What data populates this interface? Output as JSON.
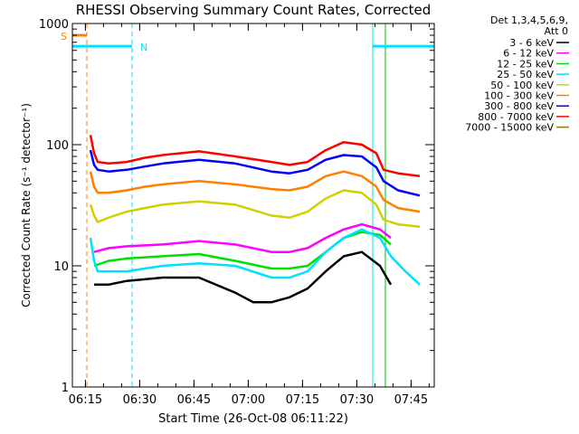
{
  "chart_data": {
    "type": "line",
    "title": "RHESSI Observing Summary Count Rates, Corrected",
    "xlabel": "Start Time (26-Oct-08 06:11:22)",
    "ylabel": "Corrected Count Rate (s⁻¹ detector⁻¹)",
    "x_unit": "minutes after 06:11:22",
    "y_scale": "log",
    "ylim": [
      1,
      1000
    ],
    "xlim": [
      0,
      100
    ],
    "x_ticks": [
      {
        "t": 3.6,
        "label": "06:15"
      },
      {
        "t": 18.6,
        "label": "06:30"
      },
      {
        "t": 33.6,
        "label": "06:45"
      },
      {
        "t": 48.6,
        "label": "07:00"
      },
      {
        "t": 63.6,
        "label": "07:15"
      },
      {
        "t": 78.6,
        "label": "07:30"
      },
      {
        "t": 93.6,
        "label": "07:45"
      }
    ],
    "y_ticks": [
      {
        "v": 1,
        "label": "1"
      },
      {
        "v": 10,
        "label": "10"
      },
      {
        "v": 100,
        "label": "100"
      },
      {
        "v": 1000,
        "label": "1000"
      }
    ],
    "legend_header": [
      "Det 1,3,4,5,6,9,",
      "Att 0"
    ],
    "legend_position": "top-right",
    "markers": [
      {
        "label": "S",
        "t_start": 0,
        "t_end": 4,
        "value": 800,
        "color": "#ff8000",
        "dashed_line_t": 4
      },
      {
        "label": "N",
        "t_start": 0,
        "t_end": 16.5,
        "value": 650,
        "color": "#00e0ff",
        "dashed_line_t": 16.5
      },
      {
        "label": "",
        "t_start": 83,
        "t_end": 100,
        "value": 650,
        "color": "#00e0ff",
        "dashed_line_t": 100
      }
    ],
    "vertical_lines": [
      {
        "t": 0,
        "color": "#00c000",
        "style": "solid"
      },
      {
        "t": 83,
        "color": "#00e0ff",
        "style": "solid"
      },
      {
        "t": 86.5,
        "color": "#00c000",
        "style": "solid"
      }
    ],
    "series": [
      {
        "name": "3 - 6 keV",
        "color": "#000000",
        "x": [
          6,
          10,
          15,
          25,
          35,
          45,
          50,
          55,
          60,
          65,
          70,
          75,
          80,
          85,
          88
        ],
        "y": [
          7,
          7,
          7.5,
          8,
          8,
          6,
          5,
          5,
          5.5,
          6.5,
          9,
          12,
          13,
          10,
          7
        ]
      },
      {
        "name": "6 - 12 keV",
        "color": "#ff00ff",
        "x": [
          6,
          10,
          15,
          25,
          35,
          45,
          55,
          60,
          65,
          70,
          75,
          80,
          85,
          88
        ],
        "y": [
          13,
          14,
          14.5,
          15,
          16,
          15,
          13,
          13,
          14,
          17,
          20,
          22,
          20,
          17
        ]
      },
      {
        "name": "12 - 25 keV",
        "color": "#00e000",
        "x": [
          6,
          10,
          15,
          25,
          35,
          45,
          55,
          60,
          65,
          70,
          75,
          80,
          85,
          88
        ],
        "y": [
          10,
          11,
          11.5,
          12,
          12.5,
          11,
          9.5,
          9.5,
          10,
          13,
          17,
          19,
          18,
          15
        ]
      },
      {
        "name": "25 - 50 keV",
        "color": "#00e0ff",
        "x": [
          5,
          6,
          7,
          10,
          15,
          20,
          25,
          35,
          45,
          55,
          60,
          65,
          70,
          75,
          80,
          85,
          88,
          92,
          96
        ],
        "y": [
          17,
          11,
          9,
          9,
          9,
          9.5,
          10,
          10.5,
          10,
          8,
          8,
          9,
          13,
          17,
          20,
          17,
          12,
          9,
          7
        ]
      },
      {
        "name": "50 - 100 keV",
        "color": "#d0d000",
        "x": [
          5,
          6,
          7,
          10,
          15,
          20,
          25,
          35,
          45,
          55,
          60,
          65,
          70,
          75,
          80,
          84,
          86,
          90,
          96
        ],
        "y": [
          32,
          26,
          23,
          25,
          28,
          30,
          32,
          34,
          32,
          26,
          25,
          28,
          36,
          42,
          40,
          32,
          24,
          22,
          21
        ]
      },
      {
        "name": "100 - 300 keV",
        "color": "#ff8000",
        "x": [
          5,
          6,
          7,
          10,
          15,
          20,
          25,
          35,
          45,
          55,
          60,
          65,
          70,
          75,
          80,
          84,
          86,
          90,
          96
        ],
        "y": [
          60,
          45,
          40,
          40,
          42,
          45,
          47,
          50,
          47,
          43,
          42,
          45,
          55,
          60,
          55,
          45,
          35,
          30,
          28
        ]
      },
      {
        "name": "300 - 800 keV",
        "color": "#0000ff",
        "x": [
          5,
          6,
          7,
          10,
          15,
          20,
          25,
          35,
          45,
          55,
          60,
          65,
          70,
          75,
          80,
          84,
          86,
          90,
          96
        ],
        "y": [
          90,
          68,
          62,
          60,
          62,
          66,
          70,
          75,
          70,
          60,
          58,
          62,
          75,
          82,
          80,
          65,
          50,
          42,
          38
        ]
      },
      {
        "name": "800 - 7000 keV",
        "color": "#ff0000",
        "x": [
          5,
          6,
          7,
          10,
          15,
          20,
          25,
          35,
          45,
          55,
          60,
          65,
          70,
          75,
          80,
          84,
          86,
          90,
          96
        ],
        "y": [
          120,
          85,
          72,
          70,
          72,
          78,
          82,
          88,
          80,
          72,
          68,
          72,
          90,
          105,
          100,
          85,
          62,
          58,
          55
        ]
      },
      {
        "name": "7000 - 15000 keV",
        "color": "#808000",
        "x": [],
        "y": []
      }
    ]
  }
}
